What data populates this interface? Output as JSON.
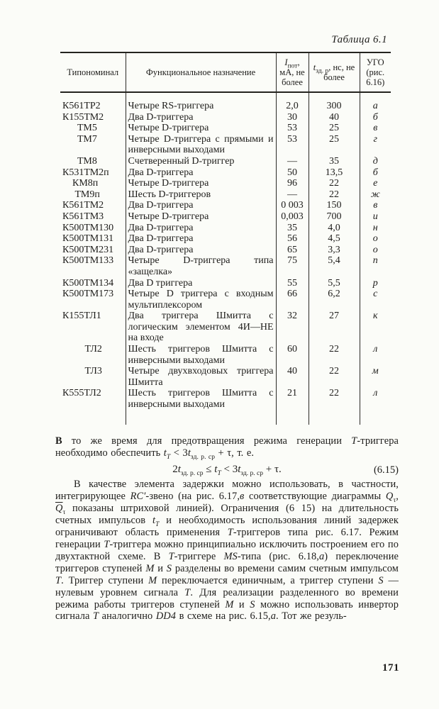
{
  "page": {
    "caption": "Таблица 6.1",
    "number": "171"
  },
  "table": {
    "headers": {
      "col1": "Типономинал",
      "col2": "Функциональное назначение",
      "col3": [
        {
          "t": "I",
          "i": 1
        },
        {
          "t": "пот",
          "sub": 1
        },
        {
          "t": ", мА, не более"
        }
      ],
      "col4": [
        {
          "t": "t",
          "i": 1
        },
        {
          "t": "зд. р",
          "sub": 1
        },
        {
          "t": ", нс, не более"
        }
      ],
      "col5": "УГО (рис. 6.16)"
    },
    "rows": [
      {
        "type": "К561ТР2",
        "func": "Четыре RS-триггера",
        "i": "2,0",
        "t": "300",
        "ugo": "а"
      },
      {
        "type": "К155ТМ2",
        "func": "Два D-триггера",
        "i": "30",
        "t": "40",
        "ugo": "б"
      },
      {
        "type": "      ТМ5",
        "func": "Четыре D-триггера",
        "i": "53",
        "t": "25",
        "ugo": "в"
      },
      {
        "type": "      ТМ7",
        "func": "Четыре D-триггера с прямыми и инверсными выходами",
        "i": "53",
        "t": "25",
        "ugo": "г"
      },
      {
        "type": "      ТМ8",
        "func": "Счетверенный D-триггер",
        "i": "—",
        "t": "35",
        "ugo": "д"
      },
      {
        "type": "К531ТМ2п",
        "func": "Два D-триггера",
        "i": "50",
        "t": "13,5",
        "ugo": "б"
      },
      {
        "type": "    КМ8п",
        "func": "Четыре D-триггера",
        "i": "96",
        "t": "22",
        "ugo": "е"
      },
      {
        "type": "     ТМ9п",
        "func": "Шесть D-триггеров",
        "i": "—",
        "t": "22",
        "ugo": "ж"
      },
      {
        "type": "К561ТМ2",
        "func": "Два D-триггера",
        "i": "0 003",
        "t": "150",
        "ugo": "в"
      },
      {
        "type": "К561ТМ3",
        "func": "Четыре D-триггера",
        "i": "0,003",
        "t": "700",
        "ugo": "и"
      },
      {
        "type": "К500ТМ130",
        "func": "Два D-триггера",
        "i": "35",
        "t": "4,0",
        "ugo": "н"
      },
      {
        "type": "К500ТМ131",
        "func": "Два D-триггера",
        "i": "56",
        "t": "4,5",
        "ugo": "о"
      },
      {
        "type": "К500ТМ231",
        "func": "Два D-триггера",
        "i": "65",
        "t": "3,3",
        "ugo": "о"
      },
      {
        "type": "К500ТМ133",
        "func": "Четыре D-триггера типа «защелка»",
        "i": "75",
        "t": "5,4",
        "ugo": "п"
      },
      {
        "type": "К500ТМ134",
        "func": "Два D триггера",
        "i": "55",
        "t": "5,5",
        "ugo": "р"
      },
      {
        "type": "К500ТМ173",
        "func": "Четыре D триггера с входным мультиплексором",
        "i": "66",
        "t": "6,2",
        "ugo": "с"
      },
      {
        "type": "К155ТЛ1",
        "func": "Два триггера Шмитта с логическим элементом 4И—НЕ на входе",
        "i": "32",
        "t": "27",
        "ugo": "к"
      },
      {
        "type": "         ТЛ2",
        "func": "Шесть триггеров Шмитта с инверсными выходами",
        "i": "60",
        "t": "22",
        "ugo": "л"
      },
      {
        "type": "         ТЛ3",
        "func": "Четыре двухвходовых триггера Шмитта",
        "i": "40",
        "t": "22",
        "ugo": "м"
      },
      {
        "type": "К555ТЛ2",
        "func": "Шесть триггеров Шмитта с инверсными выходами",
        "i": "21",
        "t": "22",
        "ugo": "л"
      }
    ]
  },
  "para1": {
    "segments": [
      {
        "t": "В",
        "b": 1
      },
      {
        "t": " то же время для предотвращения режима генерации "
      },
      {
        "t": "Т",
        "i": 1
      },
      {
        "t": "-триггера необходимо обеспечить "
      },
      {
        "t": "t",
        "i": 1
      },
      {
        "t": "T",
        "sub": 1,
        "i": 1
      },
      {
        "t": " < 3"
      },
      {
        "t": "t",
        "i": 1
      },
      {
        "t": "зд. р. ср",
        "sub": 1
      },
      {
        "t": " + τ, т. е."
      }
    ]
  },
  "equation": {
    "segments": [
      {
        "t": "2"
      },
      {
        "t": "t",
        "i": 1
      },
      {
        "t": "зд. р. ср",
        "sub": 1
      },
      {
        "t": " ≤ "
      },
      {
        "t": "t",
        "i": 1
      },
      {
        "t": "T",
        "sub": 1,
        "i": 1
      },
      {
        "t": " < 3"
      },
      {
        "t": "t",
        "i": 1
      },
      {
        "t": "зд. р. ср",
        "sub": 1
      },
      {
        "t": " + τ."
      }
    ],
    "number": "(6.15)"
  },
  "para2": {
    "segments": [
      {
        "t": "В качестве элемента задержки можно использовать, в частности, интегрирующее "
      },
      {
        "t": "RC′",
        "i": 1
      },
      {
        "t": "-звено (на рис. 6.17,"
      },
      {
        "t": "в",
        "i": 1
      },
      {
        "t": " соответствующие диаграммы "
      },
      {
        "t": "Q",
        "i": 1
      },
      {
        "t": "τ",
        "sub": 1
      },
      {
        "t": ", "
      },
      {
        "t": "Q",
        "i": 1,
        "ov": 1
      },
      {
        "t": "τ",
        "sub": 1
      },
      {
        "t": " показаны штриховой линией). Ограничения (6 15) на длительность счетных импульсов "
      },
      {
        "t": "t",
        "i": 1
      },
      {
        "t": "T",
        "sub": 1,
        "i": 1
      },
      {
        "t": " и необходимость использования линий задержек ограничивают область применения "
      },
      {
        "t": "Т",
        "i": 1
      },
      {
        "t": "-триггеров типа рис. 6.17. Режим генерации "
      },
      {
        "t": "Т",
        "i": 1
      },
      {
        "t": "-триггера можно принципиально исключить построением его по двухтактной схеме. В "
      },
      {
        "t": "Т",
        "i": 1
      },
      {
        "t": "-триггере "
      },
      {
        "t": "MS",
        "i": 1
      },
      {
        "t": "-типа (рис. 6.18,"
      },
      {
        "t": "а",
        "i": 1
      },
      {
        "t": ") переключение триггеров ступеней "
      },
      {
        "t": "М",
        "i": 1
      },
      {
        "t": " и "
      },
      {
        "t": "S",
        "i": 1
      },
      {
        "t": " разделены во времени самим счетным импульсом "
      },
      {
        "t": "Т",
        "i": 1
      },
      {
        "t": ". Триггер ступени "
      },
      {
        "t": "М",
        "i": 1
      },
      {
        "t": " переключается единичным, а триггер ступени "
      },
      {
        "t": "S",
        "i": 1
      },
      {
        "t": " — нулевым уровнем сигнала "
      },
      {
        "t": "Т",
        "i": 1
      },
      {
        "t": ". Для реализации разделенного во времени режима работы триггеров ступеней "
      },
      {
        "t": "М",
        "i": 1
      },
      {
        "t": " и "
      },
      {
        "t": "S",
        "i": 1
      },
      {
        "t": " можно использовать инвертор сигнала "
      },
      {
        "t": "Т",
        "i": 1
      },
      {
        "t": " аналогично "
      },
      {
        "t": "DD4",
        "i": 1
      },
      {
        "t": " в схеме на рис. 6.15,"
      },
      {
        "t": "а",
        "i": 1
      },
      {
        "t": ". Тот же резуль-"
      }
    ]
  }
}
